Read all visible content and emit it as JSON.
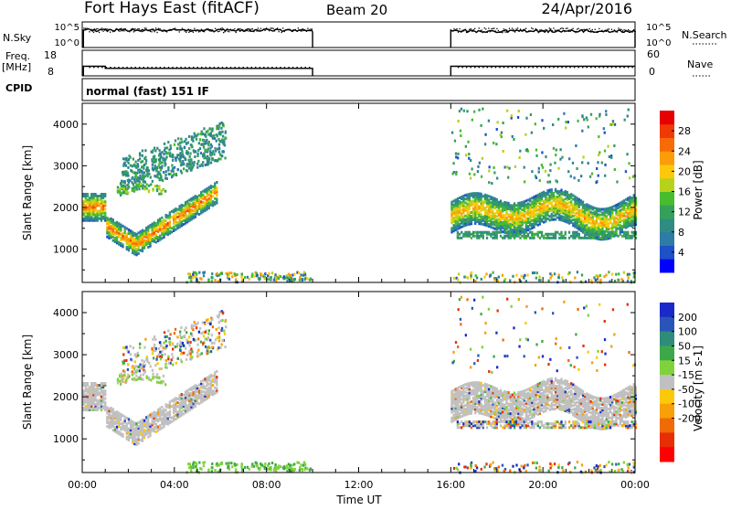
{
  "header": {
    "station": "Fort Hays East (fitACF)",
    "beam": "Beam 20",
    "date": "24/Apr/2016"
  },
  "panels": {
    "nsky": {
      "left_label": "N.Sky",
      "right_label": "N.Search",
      "left_ticks": [
        "10^5",
        "10^0"
      ],
      "right_ticks": [
        "10^5",
        "10^0"
      ]
    },
    "freq": {
      "left_label_1": "Freq.",
      "left_label_2": "[MHz]",
      "right_label": "Nave",
      "left_ticks": [
        "18",
        "8"
      ],
      "right_ticks": [
        "60",
        "0"
      ]
    },
    "cpid": {
      "left_label": "CPID",
      "text": "normal (fast) 151 IF"
    }
  },
  "colors": {
    "frame": "#000000",
    "ground_scatter": "#c0c0c0"
  },
  "chart_data": [
    {
      "type": "heatmap",
      "name_label": "power",
      "ylabel": "Slant Range [km]",
      "xlabel": "",
      "ylim": [
        200,
        4500
      ],
      "xlim_hours": [
        0,
        24
      ],
      "y_ticks": [
        1000,
        2000,
        3000,
        4000
      ],
      "colorbar": {
        "label": "Power [dB]",
        "range": [
          0,
          32
        ],
        "ticks": [
          "28",
          "24",
          "20",
          "16",
          "12",
          "8",
          "4"
        ],
        "tick_values": [
          28,
          24,
          20,
          16,
          12,
          8,
          4
        ],
        "colors": [
          "#0000ff",
          "#1e50c8",
          "#2e7ba6",
          "#2f8c82",
          "#35a05a",
          "#49bb2e",
          "#b7d21a",
          "#fcc90a",
          "#fb9d08",
          "#f76b06",
          "#f03a05",
          "#e60000"
        ]
      },
      "bands": [
        {
          "x0": 0.0,
          "x1": 1.0,
          "y0": 1800,
          "y1": 2500,
          "level": 18
        },
        {
          "x0": 1.0,
          "x1": 5.8,
          "y_from": 1550,
          "y_mid": 1150,
          "y_to": 2450,
          "level": 22
        },
        {
          "x0": 16.0,
          "x1": 24.0,
          "y0": 1500,
          "y1": 2400,
          "level": 16
        }
      ]
    },
    {
      "type": "heatmap",
      "name_label": "velocity",
      "ylabel": "Slant Range [km]",
      "xlabel": "Time UT",
      "ylim": [
        200,
        4500
      ],
      "xlim_hours": [
        0,
        24
      ],
      "y_ticks": [
        1000,
        2000,
        3000,
        4000
      ],
      "x_ticks": [
        "00:00",
        "04:00",
        "08:00",
        "12:00",
        "16:00",
        "20:00",
        "00:00"
      ],
      "x_tick_hours": [
        0,
        4,
        8,
        12,
        16,
        20,
        24
      ],
      "colorbar": {
        "label": "Velocity [m s-1]",
        "range": [
          -250,
          250
        ],
        "ticks": [
          "200",
          "100",
          "50",
          "15",
          "-15",
          "-50",
          "-100",
          "-200"
        ],
        "colors_top_to_bottom": [
          "#1a2ac8",
          "#2a55b8",
          "#2f8c7a",
          "#3da84a",
          "#80d23a",
          "#c0c0c0",
          "#fcc90a",
          "#f7a008",
          "#f06a06",
          "#e82e05",
          "#ff0000"
        ]
      }
    }
  ]
}
